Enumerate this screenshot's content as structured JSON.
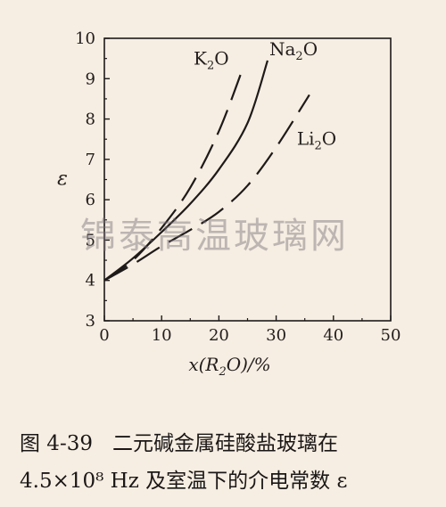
{
  "chart_data": {
    "type": "line",
    "xlabel": "x(R2O)/%",
    "ylabel": "ε",
    "xlim": [
      0,
      50
    ],
    "ylim": [
      3,
      10
    ],
    "x_ticks": [
      "0",
      "10",
      "20",
      "30",
      "40",
      "50"
    ],
    "y_ticks": [
      "3",
      "4",
      "5",
      "6",
      "7",
      "8",
      "9",
      "10"
    ],
    "grid": false,
    "series": [
      {
        "name": "K2O",
        "style": "dashed",
        "points": [
          [
            0,
            4.0
          ],
          [
            5,
            4.5
          ],
          [
            10,
            5.3
          ],
          [
            15,
            6.3
          ],
          [
            20,
            7.7
          ],
          [
            24.3,
            9.3
          ]
        ]
      },
      {
        "name": "Na2O",
        "style": "solid",
        "points": [
          [
            0,
            4.0
          ],
          [
            5,
            4.55
          ],
          [
            10,
            5.2
          ],
          [
            15,
            5.9
          ],
          [
            20,
            6.75
          ],
          [
            25,
            7.9
          ],
          [
            28.5,
            9.45
          ]
        ]
      },
      {
        "name": "Li2O",
        "style": "dashed",
        "points": [
          [
            0,
            4.0
          ],
          [
            5,
            4.4
          ],
          [
            10,
            4.85
          ],
          [
            15,
            5.25
          ],
          [
            20,
            5.7
          ],
          [
            25,
            6.35
          ],
          [
            30,
            7.3
          ],
          [
            35.8,
            8.6
          ]
        ]
      }
    ]
  },
  "watermark": "锦泰高温玻璃网",
  "caption": {
    "figure_number": "图 4-39",
    "line1_text": "二元碱金属硅酸盐玻璃在",
    "line2_text": "4.5×10⁸ Hz 及室温下的介电常数 ε"
  },
  "colors": {
    "background": "#f6eee2",
    "ink": "#1e1a1a",
    "watermark": "#8a7e8a"
  }
}
